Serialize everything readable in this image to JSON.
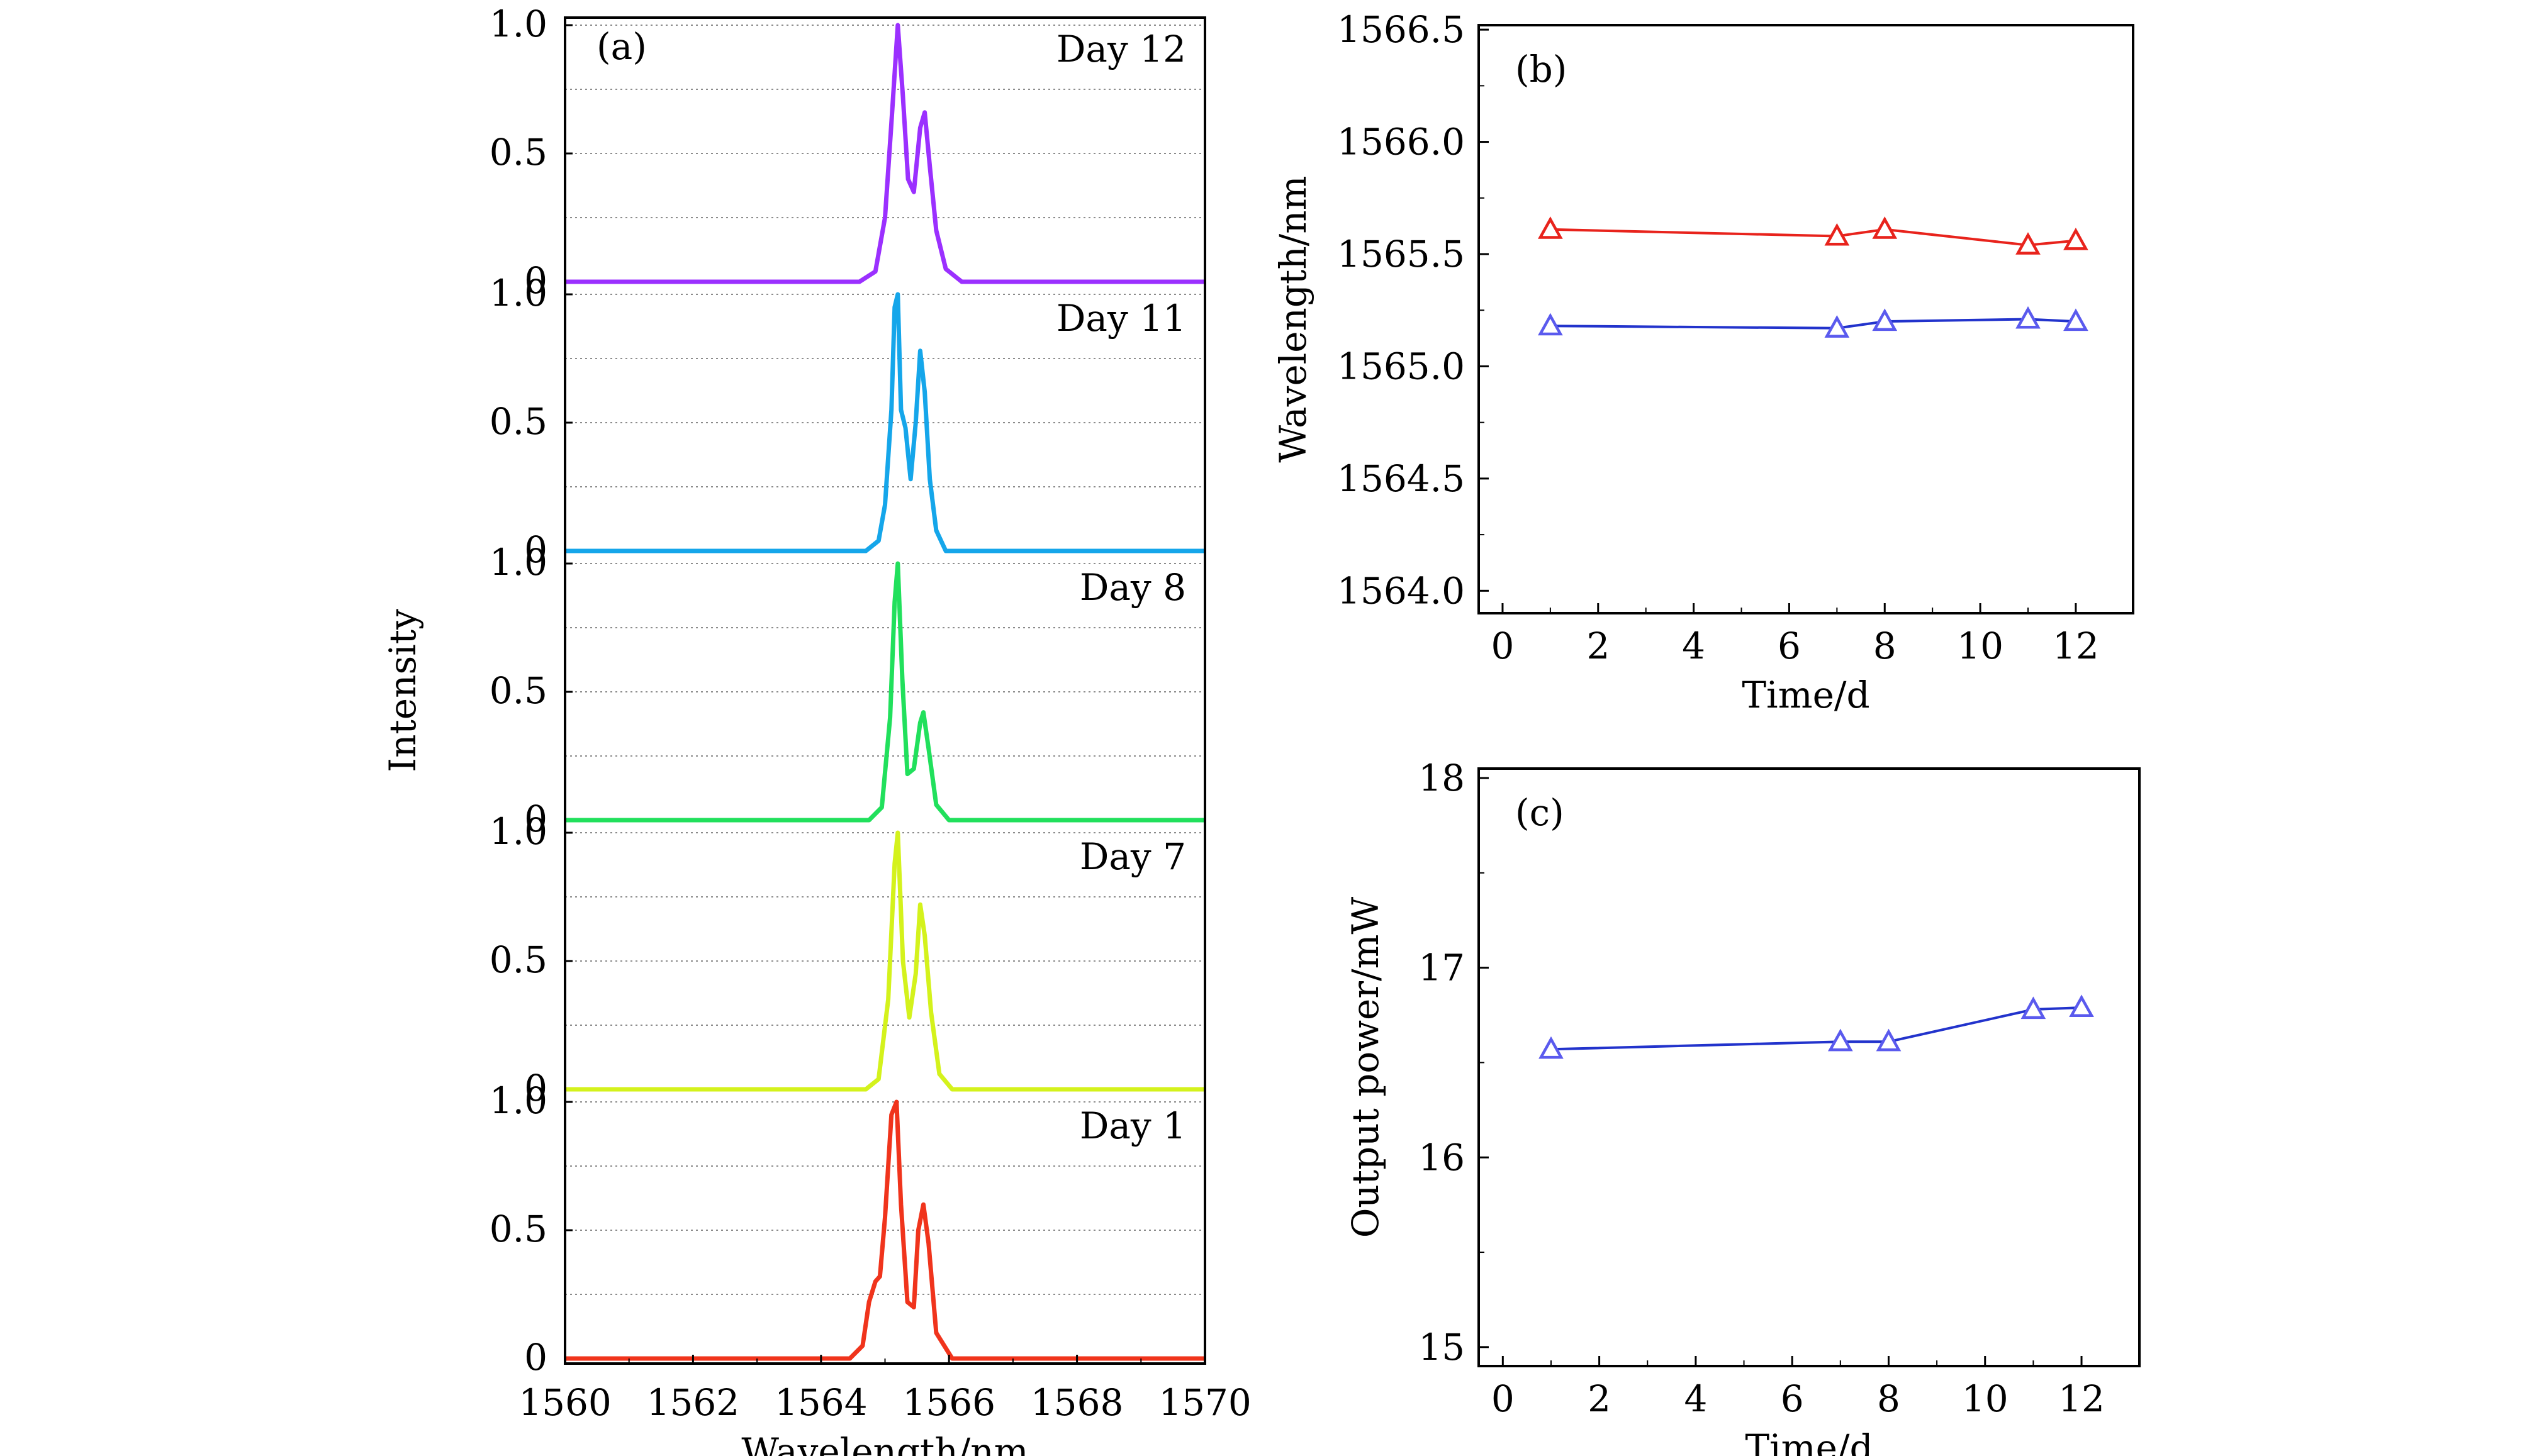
{
  "chart_data": [
    {
      "id": "a",
      "type": "line",
      "panel_label": "(a)",
      "xlabel": "Wavelength/nm",
      "ylabel": "Intensity",
      "xlim": [
        1560,
        1570
      ],
      "x_ticks": [
        "1560",
        "1562",
        "1564",
        "1566",
        "1568",
        "1570"
      ],
      "y_ticks": [
        "0",
        "0.5",
        "1.0"
      ],
      "grid": "horizontal dotted lines each 0.25 within every strip",
      "series": [
        {
          "name": "Day 12",
          "color": "#9b30ff",
          "x": [
            1560,
            1564.6,
            1564.85,
            1565.0,
            1565.1,
            1565.2,
            1565.28,
            1565.36,
            1565.45,
            1565.55,
            1565.62,
            1565.7,
            1565.8,
            1565.95,
            1566.2,
            1570
          ],
          "y": [
            0,
            0.0,
            0.04,
            0.25,
            0.62,
            1.0,
            0.72,
            0.4,
            0.35,
            0.6,
            0.66,
            0.45,
            0.2,
            0.05,
            0.0,
            0
          ]
        },
        {
          "name": "Day 11",
          "color": "#15a6ea",
          "x": [
            1560,
            1564.7,
            1564.9,
            1565.0,
            1565.1,
            1565.15,
            1565.2,
            1565.25,
            1565.32,
            1565.4,
            1565.48,
            1565.55,
            1565.62,
            1565.7,
            1565.8,
            1565.95,
            1570
          ],
          "y": [
            0,
            0.0,
            0.04,
            0.18,
            0.55,
            0.95,
            1.0,
            0.55,
            0.48,
            0.28,
            0.5,
            0.78,
            0.62,
            0.28,
            0.08,
            0.0,
            0
          ]
        },
        {
          "name": "Day 8",
          "color": "#21e05c",
          "x": [
            1560,
            1564.75,
            1564.95,
            1565.08,
            1565.15,
            1565.2,
            1565.27,
            1565.35,
            1565.45,
            1565.55,
            1565.6,
            1565.68,
            1565.8,
            1566.0,
            1570
          ],
          "y": [
            0,
            0.0,
            0.05,
            0.4,
            0.85,
            1.0,
            0.55,
            0.18,
            0.2,
            0.38,
            0.42,
            0.28,
            0.06,
            0.0,
            0
          ]
        },
        {
          "name": "Day 7",
          "color": "#d4f21c",
          "x": [
            1560,
            1564.7,
            1564.9,
            1565.05,
            1565.15,
            1565.2,
            1565.28,
            1565.38,
            1565.48,
            1565.55,
            1565.62,
            1565.72,
            1565.85,
            1566.05,
            1570
          ],
          "y": [
            0,
            0.0,
            0.04,
            0.35,
            0.88,
            1.0,
            0.5,
            0.28,
            0.45,
            0.72,
            0.6,
            0.3,
            0.06,
            0.0,
            0
          ]
        },
        {
          "name": "Day 1",
          "color": "#f0341c",
          "x": [
            1560,
            1564.45,
            1564.65,
            1564.75,
            1564.85,
            1564.92,
            1565.0,
            1565.1,
            1565.18,
            1565.25,
            1565.35,
            1565.45,
            1565.52,
            1565.6,
            1565.68,
            1565.8,
            1566.05,
            1570
          ],
          "y": [
            0,
            0.0,
            0.05,
            0.22,
            0.3,
            0.32,
            0.55,
            0.95,
            1.0,
            0.6,
            0.22,
            0.2,
            0.5,
            0.6,
            0.45,
            0.1,
            0.0,
            0
          ]
        }
      ]
    },
    {
      "id": "b",
      "type": "line",
      "panel_label": "(b)",
      "xlabel": "Time/d",
      "ylabel": "Wavelength/nm",
      "xlim": [
        -0.5,
        13.2
      ],
      "ylim": [
        1563.9,
        1566.52
      ],
      "x_ticks": [
        "0",
        "2",
        "4",
        "6",
        "8",
        "10",
        "12"
      ],
      "y_ticks": [
        "1564.0",
        "1564.5",
        "1565.0",
        "1565.5",
        "1566.0",
        "1566.5"
      ],
      "marker": "open triangle",
      "series": [
        {
          "color": "#e8231c",
          "x": [
            1,
            7,
            8,
            11,
            12
          ],
          "y": [
            1565.61,
            1565.58,
            1565.61,
            1565.54,
            1565.56
          ]
        },
        {
          "color": "#2233cc",
          "marker_color": "#5a5aee",
          "x": [
            1,
            7,
            8,
            11,
            12
          ],
          "y": [
            1565.18,
            1565.17,
            1565.2,
            1565.21,
            1565.2
          ]
        }
      ]
    },
    {
      "id": "c",
      "type": "line",
      "panel_label": "(c)",
      "xlabel": "Time/d",
      "ylabel": "Output power/mW",
      "xlim": [
        -0.5,
        13.2
      ],
      "ylim": [
        14.9,
        18.05
      ],
      "x_ticks": [
        "0",
        "2",
        "4",
        "6",
        "8",
        "10",
        "12"
      ],
      "y_ticks": [
        "15",
        "16",
        "17",
        "18"
      ],
      "marker": "open triangle",
      "series": [
        {
          "color": "#2233cc",
          "marker_color": "#5a5aee",
          "x": [
            1,
            7,
            8,
            11,
            12
          ],
          "y": [
            16.57,
            16.61,
            16.61,
            16.78,
            16.79
          ]
        }
      ]
    }
  ]
}
